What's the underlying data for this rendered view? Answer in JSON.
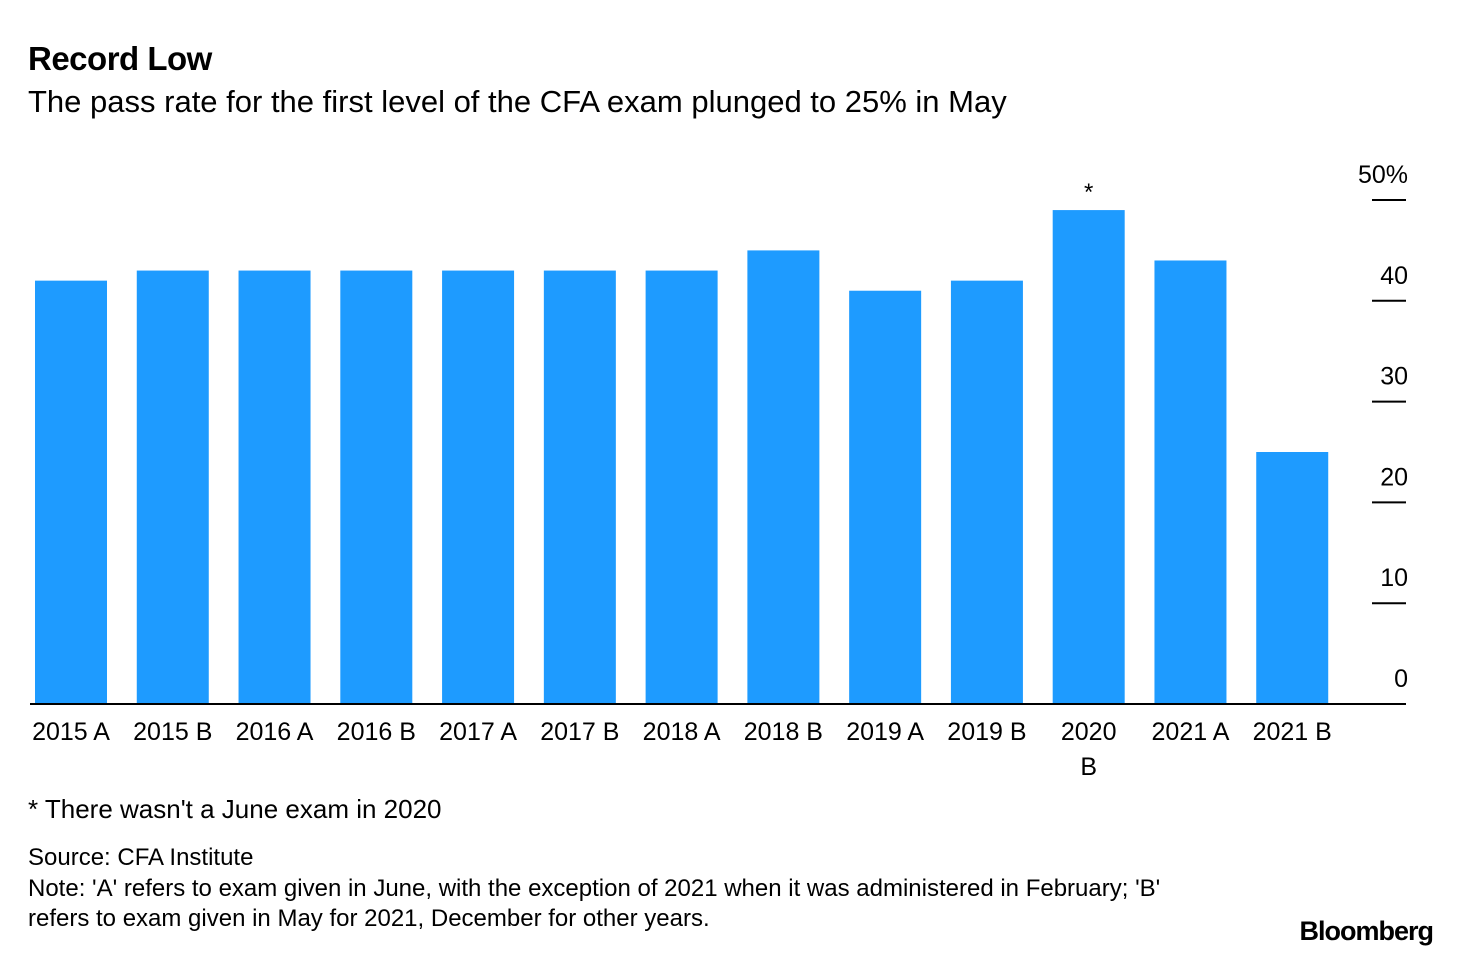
{
  "header": {
    "title": "Record Low",
    "subtitle": "The pass rate for the first level of the CFA exam plunged to 25% in May"
  },
  "chart_data": {
    "type": "bar",
    "title": "Record Low",
    "subtitle": "The pass rate for the first level of the CFA exam plunged to 25% in May",
    "categories": [
      "2015 A",
      "2015 B",
      "2016 A",
      "2016 B",
      "2017 A",
      "2017 B",
      "2018 A",
      "2018 B",
      "2019 A",
      "2019 B",
      "2020 B",
      "2021 A",
      "2021 B"
    ],
    "category_label_lines": [
      [
        "2015 A"
      ],
      [
        "2015 B"
      ],
      [
        "2016 A"
      ],
      [
        "2016 B"
      ],
      [
        "2017 A"
      ],
      [
        "2017 B"
      ],
      [
        "2018 A"
      ],
      [
        "2018 B"
      ],
      [
        "2019 A"
      ],
      [
        "2019 B"
      ],
      [
        "2020",
        "B"
      ],
      [
        "2021 A"
      ],
      [
        "2021 B"
      ]
    ],
    "values": [
      42,
      43,
      43,
      43,
      43,
      43,
      43,
      45,
      41,
      42,
      49,
      44,
      25
    ],
    "annotations": [
      {
        "category": "2020 B",
        "text": "*"
      }
    ],
    "xlabel": "",
    "ylabel": "",
    "ylim": [
      0,
      50
    ],
    "yticks": [
      0,
      10,
      20,
      30,
      40,
      50
    ],
    "ytick_labels": [
      "0",
      "10",
      "20",
      "30",
      "40",
      "50%"
    ],
    "y_axis_side": "right",
    "bar_color": "#1e9bff",
    "grid": false
  },
  "footer": {
    "footnote": "* There wasn't a June exam in 2020",
    "source": "Source: CFA Institute",
    "note": "Note: 'A' refers to exam given in June, with the exception of 2021 when it was administered in February; 'B' refers to exam given in May for 2021, December for other years.",
    "brand": "Bloomberg"
  }
}
